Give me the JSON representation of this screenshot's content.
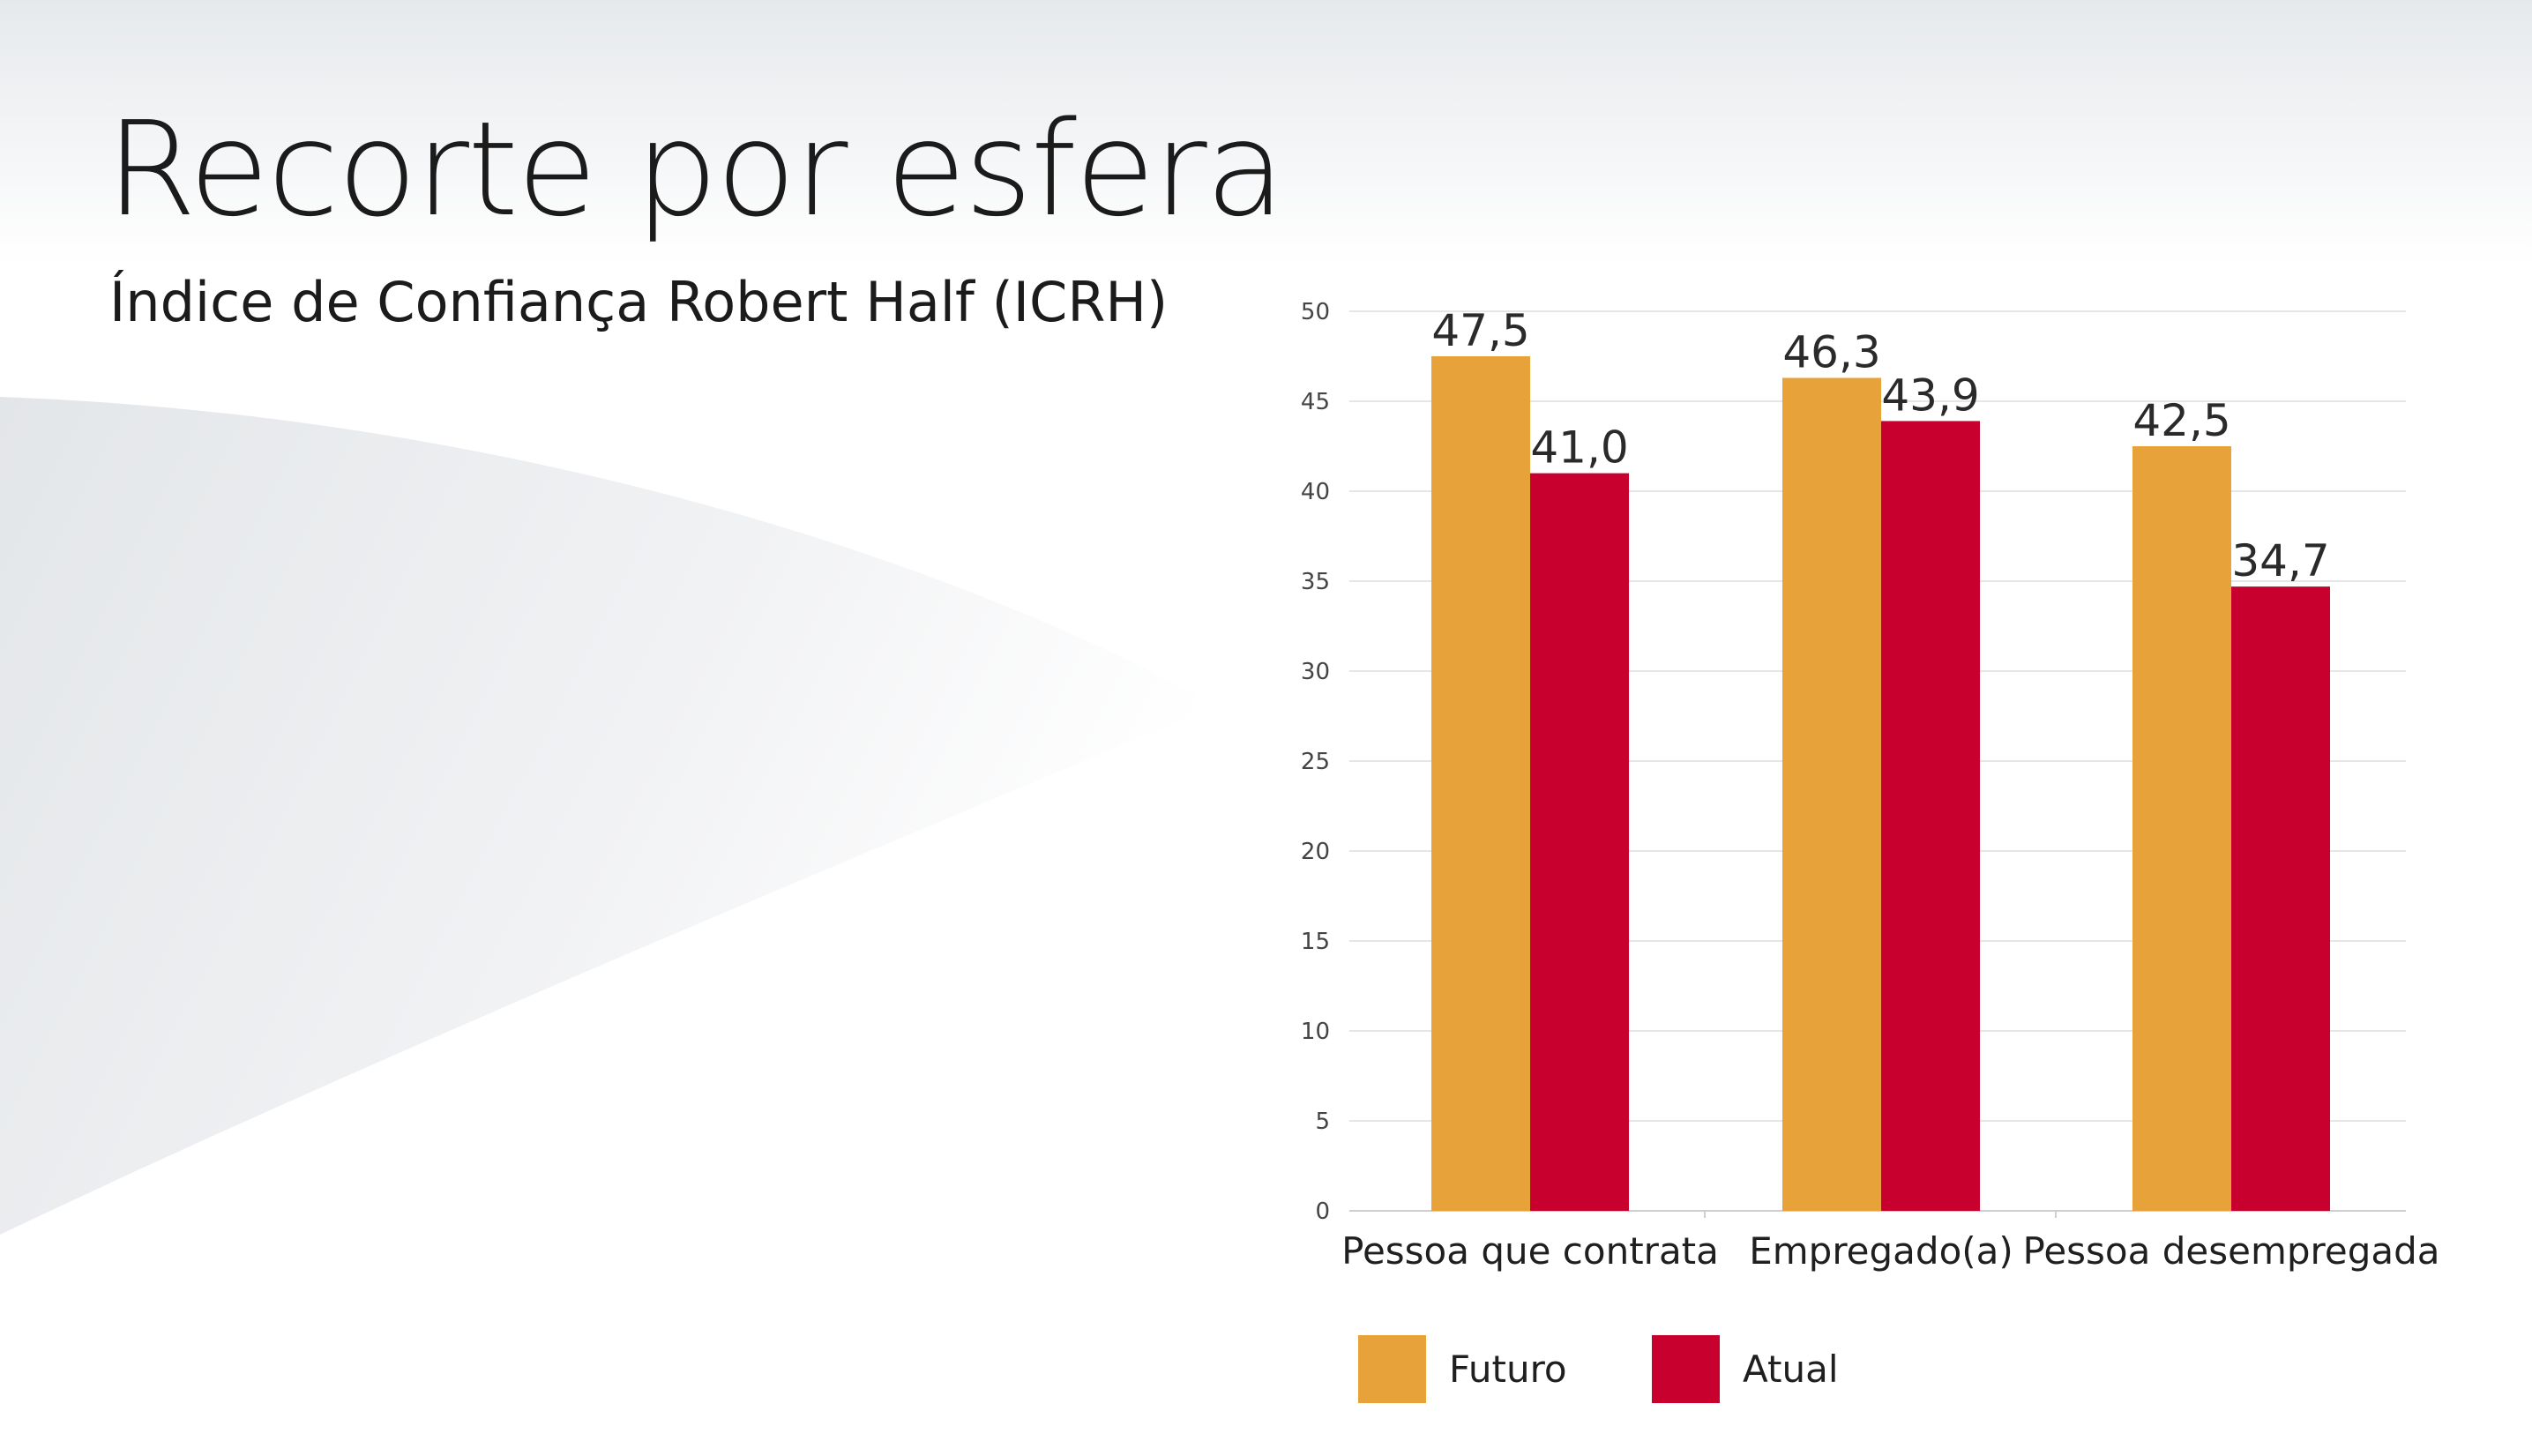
{
  "title": "Recorte por esfera",
  "subtitle": "Índice de Confiança Robert Half (ICRH)",
  "colors": {
    "futuro": "#E8A23A",
    "atual": "#C8002E",
    "grid": "#dedede",
    "text": "#1b1b1b"
  },
  "chart_data": {
    "type": "bar",
    "categories": [
      "Pessoa que contrata",
      "Empregado(a)",
      "Pessoa desempregada"
    ],
    "series": [
      {
        "name": "Futuro",
        "values": [
          47.5,
          46.3,
          42.5
        ],
        "labels": [
          "47,5",
          "46,3",
          "42,5"
        ],
        "color": "#E8A23A"
      },
      {
        "name": "Atual",
        "values": [
          41.0,
          43.9,
          34.7
        ],
        "labels": [
          "41,0",
          "43,9",
          "34,7"
        ],
        "color": "#C8002E"
      }
    ],
    "yticks": [
      "0",
      "5",
      "10",
      "15",
      "20",
      "25",
      "30",
      "35",
      "40",
      "45",
      "50"
    ],
    "ylim": [
      0,
      50
    ],
    "grid": true,
    "legend_position": "bottom-left"
  }
}
